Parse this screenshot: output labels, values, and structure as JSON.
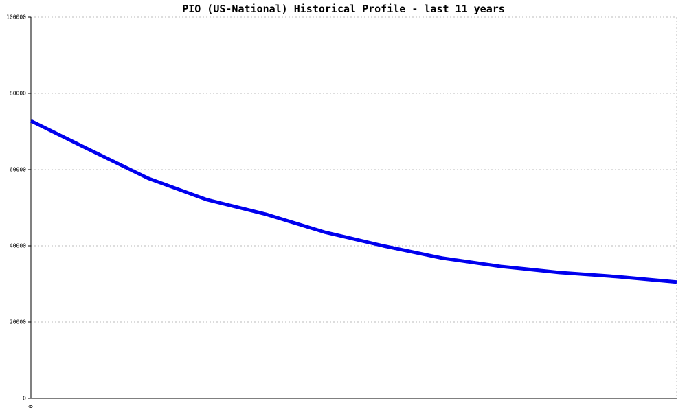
{
  "chart_data": {
    "type": "line",
    "title": "PIO (US-National) Historical Profile - last 11 years",
    "categories": [
      "0",
      null,
      null,
      null,
      null,
      null,
      null,
      null,
      null,
      null,
      null,
      null
    ],
    "series": [
      {
        "name": "PIO",
        "color": "#0000ee",
        "values": [
          72800,
          65200,
          57700,
          52100,
          48300,
          43600,
          40000,
          36800,
          34600,
          33000,
          31900,
          30500
        ]
      }
    ],
    "ylim": [
      0,
      100000
    ],
    "yticks": [
      0,
      20000,
      40000,
      60000,
      80000,
      100000
    ],
    "grid": true
  }
}
